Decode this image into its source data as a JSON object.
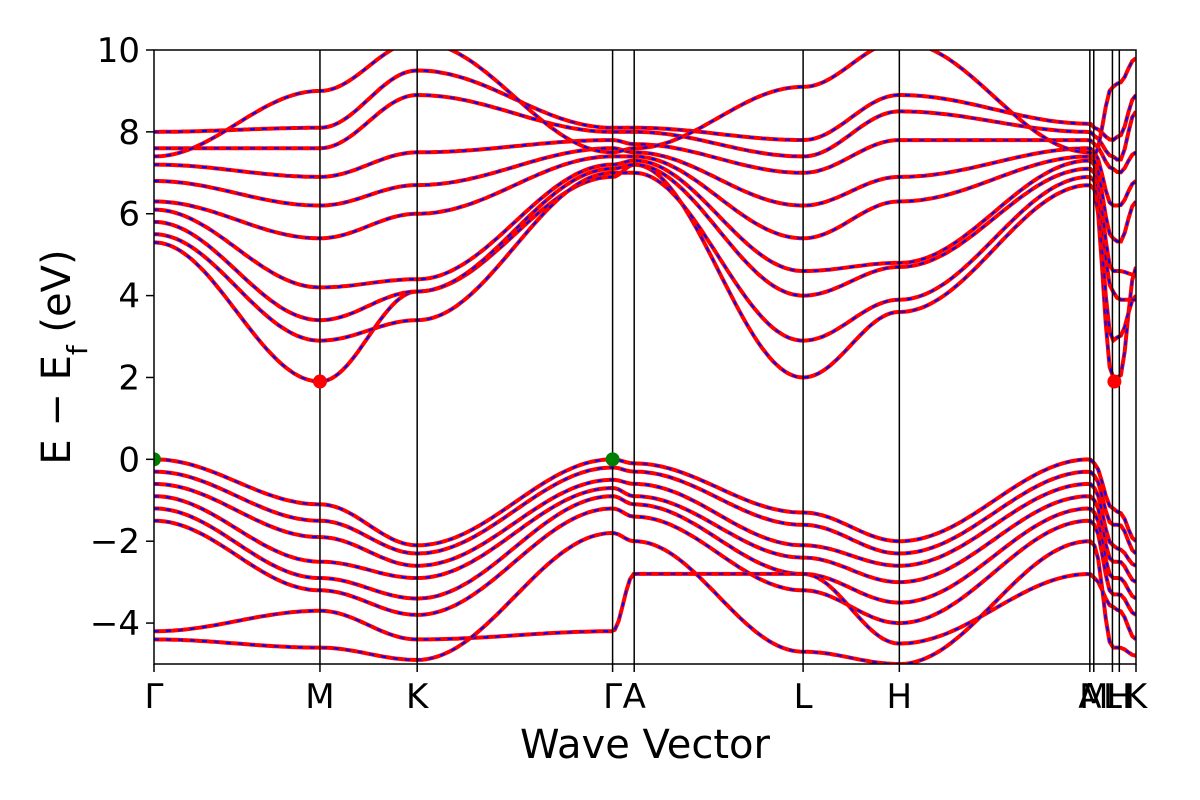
{
  "chart_data": {
    "type": "line",
    "xlabel": "Wave Vector",
    "ylabel": "E − E_f (eV)",
    "ylabel_main": "E − E",
    "ylabel_sub": "f",
    "ylabel_unit": " (eV)",
    "ylim": [
      -5,
      10
    ],
    "yticks": [
      -4,
      -2,
      0,
      2,
      4,
      6,
      8,
      10
    ],
    "ytick_labels": [
      "−4",
      "−2",
      "0",
      "2",
      "4",
      "6",
      "8",
      "10"
    ],
    "kpath": [
      {
        "label": "Γ",
        "x": 0.0
      },
      {
        "label": "M",
        "x": 0.169
      },
      {
        "label": "K",
        "x": 0.268
      },
      {
        "label": "Γ",
        "x": 0.467
      },
      {
        "label": "A",
        "x": 0.489
      },
      {
        "label": "L",
        "x": 0.661
      },
      {
        "label": "H",
        "x": 0.759
      },
      {
        "label": "A",
        "x": 0.953
      },
      {
        "label": "M",
        "x": 0.957
      },
      {
        "label": "L",
        "x": 0.976
      },
      {
        "label": "H",
        "x": 0.983
      },
      {
        "label": "K",
        "x": 1.0
      }
    ],
    "xlim": [
      0,
      1
    ],
    "band_edges": {
      "vbm": [
        {
          "x": 0.0,
          "y": 0.0
        },
        {
          "x": 0.467,
          "y": 0.0
        }
      ],
      "cbm": [
        {
          "x": 0.169,
          "y": 1.9
        },
        {
          "x": 0.978,
          "y": 1.9
        }
      ]
    },
    "colors": {
      "band_line": "#ff0000",
      "band_dash": "#0000ff",
      "vbm_marker": "#008000",
      "cbm_marker": "#ff0000",
      "vline": "#000000"
    }
  }
}
